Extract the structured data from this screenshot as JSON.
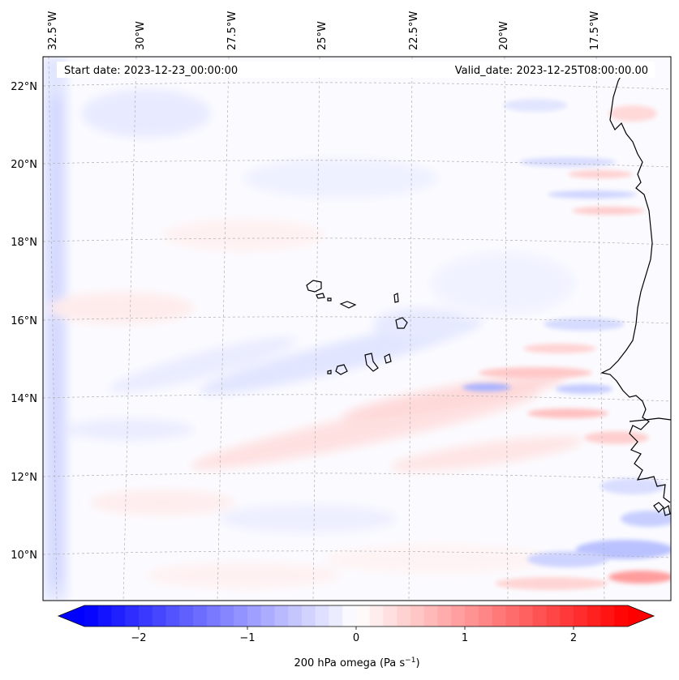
{
  "header": {
    "start_date": "Start date: 2023-12-23_00:00:00",
    "valid_date": "Valid_date: 2023-12-25T08:00:00.00"
  },
  "axes": {
    "lon_labels": [
      "32.5°W",
      "30°W",
      "27.5°W",
      "25°W",
      "22.5°W",
      "20°W",
      "17.5°W"
    ],
    "lat_labels": [
      "22°N",
      "20°N",
      "18°N",
      "16°N",
      "14°N",
      "12°N",
      "10°N"
    ]
  },
  "colorbar": {
    "ticks": [
      {
        "value": -2,
        "label": "−2"
      },
      {
        "value": -1,
        "label": "−1"
      },
      {
        "value": 0,
        "label": "0"
      },
      {
        "value": 1,
        "label": "1"
      },
      {
        "value": 2,
        "label": "2"
      }
    ],
    "vmin": -2.5,
    "vmax": 2.5,
    "label_main": "200 hPa omega (Pa s",
    "label_sup": "−1",
    "label_tail": ")",
    "color_min": "#0000ff",
    "color_mid": "#ffffff",
    "color_max": "#ff0000"
  },
  "colors": {
    "coastline": "#000000",
    "gridline": "#b0b0b0"
  }
}
